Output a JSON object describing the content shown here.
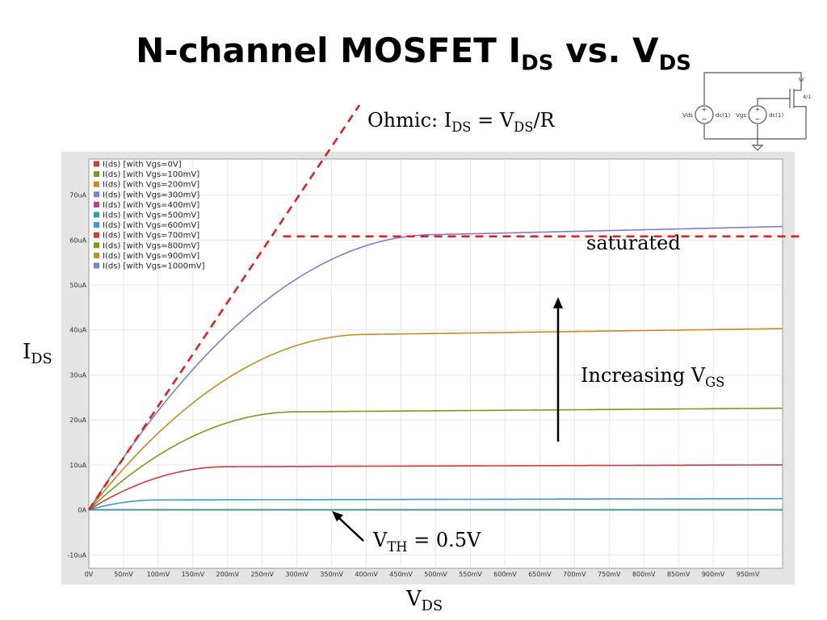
{
  "title": {
    "main": "N-channel MOSFET I",
    "sub1": "DS",
    "mid": " vs. V",
    "sub2": "DS"
  },
  "annotations": {
    "ohmic": {
      "pre": "Ohmic: I",
      "sub1": "DS",
      "mid": " = V",
      "sub2": "DS",
      "post": "/R"
    },
    "saturated": "saturated",
    "increasing": {
      "pre": "Increasing V",
      "sub": "GS"
    },
    "vth": {
      "pre": "V",
      "sub": "TH",
      "post": " = 0.5V"
    },
    "ylabel": {
      "pre": "I",
      "sub": "DS"
    },
    "xlabel": {
      "pre": "V",
      "sub": "DS"
    }
  },
  "schematic": {
    "vds": "Vds",
    "vgs": "Vgs",
    "dc1": "dc(1)",
    "dc2": "dc(1)",
    "size": "4/1"
  },
  "chart_data": {
    "type": "line",
    "xlabel": "VDS",
    "ylabel": "IDS",
    "x_ticks": [
      "0V",
      "50mV",
      "100mV",
      "150mV",
      "200mV",
      "250mV",
      "300mV",
      "350mV",
      "400mV",
      "450mV",
      "500mV",
      "550mV",
      "600mV",
      "650mV",
      "700mV",
      "750mV",
      "800mV",
      "850mV",
      "900mV",
      "950mV"
    ],
    "y_ticks": [
      "-10uA",
      "0A",
      "10uA",
      "20uA",
      "30uA",
      "40uA",
      "50uA",
      "60uA",
      "70uA"
    ],
    "xlim": [
      0,
      1000
    ],
    "ylim": [
      -13,
      78
    ],
    "grid": true,
    "legend_position": "top-left",
    "series": [
      {
        "name": "I(ds) [with Vgs=0V]",
        "color": "#d23b3b",
        "vgs": 0
      },
      {
        "name": "I(ds) [with Vgs=100mV]",
        "color": "#7a9a1e",
        "vgs": 100
      },
      {
        "name": "I(ds) [with Vgs=200mV]",
        "color": "#c48e20",
        "vgs": 200
      },
      {
        "name": "I(ds) [with Vgs=300mV]",
        "color": "#7b7fd0",
        "vgs": 300
      },
      {
        "name": "I(ds) [with Vgs=400mV]",
        "color": "#c43f8a",
        "vgs": 400
      },
      {
        "name": "I(ds) [with Vgs=500mV]",
        "color": "#2aa39b",
        "vgs": 500,
        "vdsat": 20,
        "isat": 0.0,
        "final": 0.0
      },
      {
        "name": "I(ds) [with Vgs=600mV]",
        "color": "#3b9ad6",
        "vgs": 600,
        "vdsat": 100,
        "isat": 2.2,
        "final": 2.5
      },
      {
        "name": "I(ds) [with Vgs=700mV]",
        "color": "#d23b3b",
        "vgs": 700,
        "vdsat": 200,
        "isat": 9.6,
        "final": 10.0
      },
      {
        "name": "I(ds) [with Vgs=800mV]",
        "color": "#7a9a1e",
        "vgs": 800,
        "vdsat": 300,
        "isat": 21.8,
        "final": 22.6
      },
      {
        "name": "I(ds) [with Vgs=900mV]",
        "color": "#c48e20",
        "vgs": 900,
        "vdsat": 400,
        "isat": 39.0,
        "final": 40.3
      },
      {
        "name": "I(ds) [with Vgs=1000mV]",
        "color": "#7b7fd0",
        "vgs": 1000,
        "vdsat": 500,
        "isat": 61.2,
        "final": 63.0
      }
    ],
    "ohmic_line": {
      "x": [
        0,
        390
      ],
      "y": [
        0,
        90
      ]
    },
    "saturation_line": {
      "y": 60.8,
      "x_start": 280
    }
  }
}
